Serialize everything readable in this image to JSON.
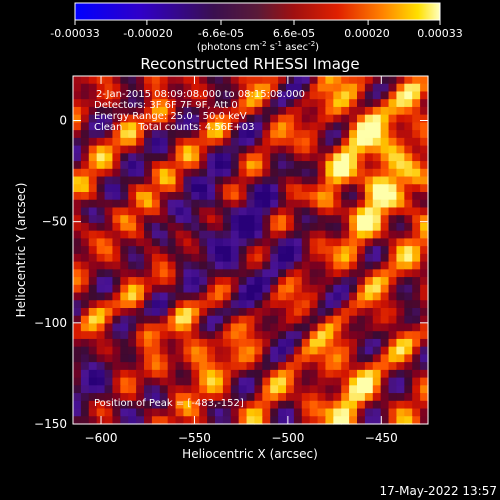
{
  "colorbar": {
    "ticks": [
      "-0.00033",
      "-0.00020",
      "-6.6e-05",
      "6.6e-05",
      "0.00020",
      "0.00033"
    ],
    "unit": "(photons cm",
    "unit_sup1": "-2",
    "unit_mid": " s",
    "unit_sup2": "-1",
    "unit_end": " asec",
    "unit_sup3": "-2",
    "unit_close": ")"
  },
  "annotations": {
    "time_range": "2-Jan-2015 08:09:08.000 to 08:15:08.000",
    "detectors": "Detectors: 3F 6F 7F 9F, Att 0",
    "energy": "Energy Range: 25.0 - 50.0 keV",
    "clean": "Clean     Total counts: 4.56E+03",
    "peak": "Position of Peak = [-483,-152]"
  },
  "footer": {
    "timestamp": "17-May-2022 13:57"
  },
  "chart_data": {
    "type": "heatmap",
    "title": "Reconstructed RHESSI Image",
    "xlabel": "Heliocentric X (arcsec)",
    "ylabel": "Heliocentric Y (arcsec)",
    "xlim": [
      -615,
      -425
    ],
    "ylim": [
      -150,
      22
    ],
    "xticks": [
      -600,
      -550,
      -500,
      -450
    ],
    "yticks": [
      0,
      -50,
      -100,
      -150
    ],
    "xtick_labels": [
      "−600",
      "−550",
      "−500",
      "−450"
    ],
    "ytick_labels": [
      "0",
      "−50",
      "−100",
      "−150"
    ],
    "colorscale": {
      "min": -0.00033,
      "max": 0.00033,
      "ticks": [
        -0.00033,
        -0.0002,
        -6.6e-05,
        6.6e-05,
        0.0002,
        0.00033
      ]
    },
    "peak": [
      -483,
      -152
    ]
  },
  "colors": {
    "background": "#000000",
    "foreground": "#ffffff"
  }
}
